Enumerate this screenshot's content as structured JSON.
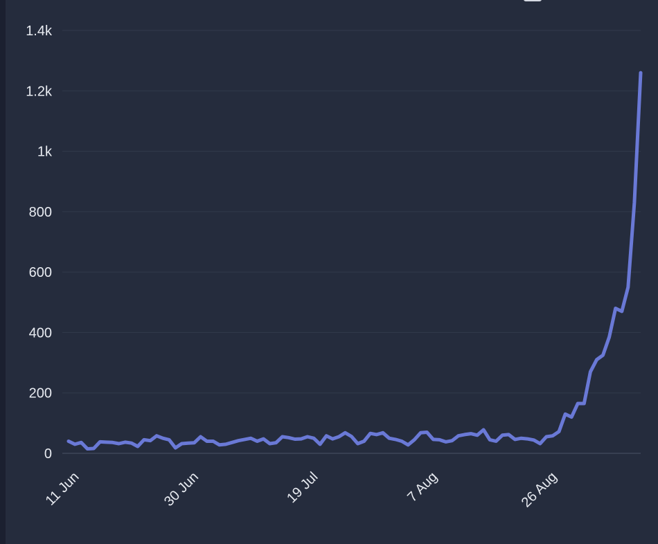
{
  "legend": {
    "label": ""
  },
  "colors": {
    "series": "#6a79d6",
    "text": "#e8ebf1"
  },
  "chart_data": {
    "type": "line",
    "title": "",
    "xlabel": "",
    "ylabel": "",
    "ylim": [
      0,
      1400
    ],
    "y_ticks": [
      0,
      200,
      400,
      600,
      800,
      1000,
      1200,
      1400
    ],
    "y_tick_labels": [
      "0",
      "200",
      "400",
      "600",
      "800",
      "1k",
      "1.2k",
      "1.4k"
    ],
    "x_ticks": [
      0,
      19,
      38,
      57,
      76
    ],
    "x_tick_labels": [
      "11 Jun",
      "30 Jun",
      "19 Jul",
      "7 Aug",
      "26 Aug"
    ],
    "grid": true,
    "series": [
      {
        "name": "",
        "x_start": "11 Jun",
        "values": [
          40,
          30,
          36,
          15,
          16,
          38,
          37,
          36,
          32,
          37,
          34,
          23,
          45,
          42,
          58,
          50,
          45,
          18,
          32,
          34,
          35,
          55,
          40,
          40,
          28,
          30,
          36,
          42,
          46,
          50,
          40,
          48,
          32,
          35,
          55,
          52,
          47,
          48,
          55,
          50,
          30,
          58,
          48,
          55,
          68,
          56,
          32,
          40,
          66,
          62,
          68,
          50,
          46,
          40,
          28,
          45,
          68,
          70,
          46,
          45,
          38,
          42,
          58,
          62,
          65,
          60,
          78,
          45,
          40,
          60,
          62,
          46,
          50,
          48,
          44,
          32,
          55,
          58,
          72,
          130,
          120,
          165,
          165,
          270,
          310,
          325,
          385,
          480,
          470,
          550,
          830,
          1260
        ]
      }
    ]
  }
}
